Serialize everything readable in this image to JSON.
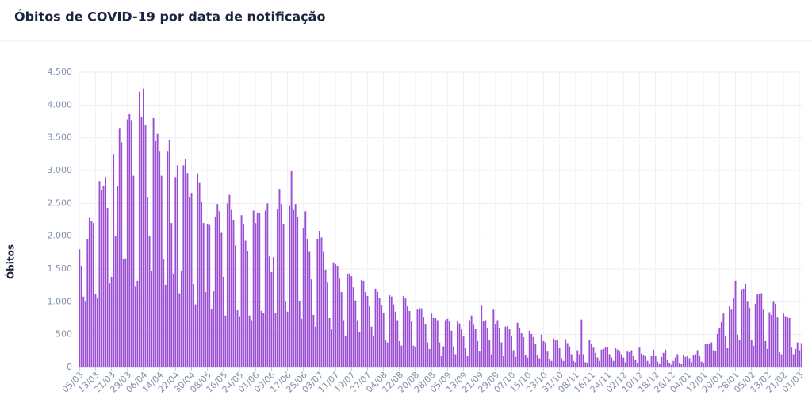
{
  "chart_data": {
    "type": "bar",
    "title": "Óbitos de COVID-19 por data de notificação",
    "y_label": "Óbitos",
    "color": "#9b4fd4",
    "grid": true,
    "ylim": [
      0,
      4500
    ],
    "yticks": [
      0,
      {
        "value": 500,
        "label": "500"
      },
      {
        "value": 1000,
        "label": "1.000"
      },
      {
        "value": 1500,
        "label": "1.500"
      },
      {
        "value": 2000,
        "label": "2.000"
      },
      {
        "value": 2500,
        "label": "2.500"
      },
      {
        "value": 3000,
        "label": "3.000"
      },
      {
        "value": 3500,
        "label": "3.500"
      },
      {
        "value": 4000,
        "label": "4.000"
      },
      {
        "value": 4500,
        "label": "4.500"
      }
    ],
    "categories": [
      "05/03",
      null,
      null,
      null,
      null,
      null,
      null,
      null,
      "13/03",
      null,
      null,
      null,
      null,
      null,
      null,
      null,
      "21/03",
      null,
      null,
      null,
      null,
      null,
      null,
      null,
      "29/03",
      null,
      null,
      null,
      null,
      null,
      null,
      null,
      "06/04",
      null,
      null,
      null,
      null,
      null,
      null,
      null,
      "14/04",
      null,
      null,
      null,
      null,
      null,
      null,
      null,
      "22/04",
      null,
      null,
      null,
      null,
      null,
      null,
      null,
      "30/04",
      null,
      null,
      null,
      null,
      null,
      null,
      null,
      "08/05",
      null,
      null,
      null,
      null,
      null,
      null,
      null,
      "16/05",
      null,
      null,
      null,
      null,
      null,
      null,
      null,
      "24/05",
      null,
      null,
      null,
      null,
      null,
      null,
      null,
      "01/06",
      null,
      null,
      null,
      null,
      null,
      null,
      null,
      "09/06",
      null,
      null,
      null,
      null,
      null,
      null,
      null,
      "17/06",
      null,
      null,
      null,
      null,
      null,
      null,
      null,
      "25/06",
      null,
      null,
      null,
      null,
      null,
      null,
      null,
      "03/07",
      null,
      null,
      null,
      null,
      null,
      null,
      null,
      "11/07",
      null,
      null,
      null,
      null,
      null,
      null,
      null,
      "19/07",
      null,
      null,
      null,
      null,
      null,
      null,
      null,
      "27/07",
      null,
      null,
      null,
      null,
      null,
      null,
      null,
      "04/08",
      null,
      null,
      null,
      null,
      null,
      null,
      null,
      "12/08",
      null,
      null,
      null,
      null,
      null,
      null,
      null,
      "20/08",
      null,
      null,
      null,
      null,
      null,
      null,
      null,
      "28/08",
      null,
      null,
      null,
      null,
      null,
      null,
      null,
      "05/09",
      null,
      null,
      null,
      null,
      null,
      null,
      null,
      "13/09",
      null,
      null,
      null,
      null,
      null,
      null,
      null,
      "21/09",
      null,
      null,
      null,
      null,
      null,
      null,
      null,
      "29/09",
      null,
      null,
      null,
      null,
      null,
      null,
      null,
      "07/10",
      null,
      null,
      null,
      null,
      null,
      null,
      null,
      "15/10",
      null,
      null,
      null,
      null,
      null,
      null,
      null,
      "23/10",
      null,
      null,
      null,
      null,
      null,
      null,
      null,
      "31/10",
      null,
      null,
      null,
      null,
      null,
      null,
      null,
      "08/11",
      null,
      null,
      null,
      null,
      null,
      null,
      null,
      "16/11",
      null,
      null,
      null,
      null,
      null,
      null,
      null,
      "24/11",
      null,
      null,
      null,
      null,
      null,
      null,
      null,
      "02/12",
      null,
      null,
      null,
      null,
      null,
      null,
      null,
      "10/12",
      null,
      null,
      null,
      null,
      null,
      null,
      null,
      "18/12",
      null,
      null,
      null,
      null,
      null,
      null,
      null,
      "26/12",
      null,
      null,
      null,
      null,
      null,
      null,
      null,
      "04/01",
      null,
      null,
      null,
      null,
      null,
      null,
      null,
      "12/01",
      null,
      null,
      null,
      null,
      null,
      null,
      null,
      "20/01",
      null,
      null,
      null,
      null,
      null,
      null,
      null,
      "28/01",
      null,
      null,
      null,
      null,
      null,
      null,
      null,
      "05/02",
      null,
      null,
      null,
      null,
      null,
      null,
      null,
      "13/02",
      null,
      null,
      null,
      null,
      null,
      null,
      null,
      "21/02",
      null,
      null,
      null,
      null,
      null,
      null,
      null,
      "01/03",
      null
    ],
    "values": [
      1800,
      1550,
      1080,
      1000,
      1960,
      2280,
      2230,
      2200,
      1120,
      1060,
      2840,
      2700,
      2770,
      2900,
      2430,
      1280,
      1380,
      3250,
      2000,
      2770,
      3650,
      3430,
      1650,
      1660,
      3780,
      3860,
      3770,
      2920,
      1230,
      1320,
      4200,
      3820,
      4250,
      3700,
      2600,
      2000,
      1470,
      3800,
      3450,
      3560,
      3300,
      2920,
      1650,
      1260,
      3300,
      3470,
      2200,
      1430,
      2900,
      3080,
      1130,
      1470,
      3080,
      3170,
      2960,
      2600,
      2660,
      1270,
      960,
      2960,
      2810,
      2530,
      2200,
      1150,
      2190,
      2180,
      890,
      1160,
      2300,
      2490,
      2380,
      2050,
      1380,
      790,
      2500,
      2630,
      2400,
      2250,
      1860,
      870,
      780,
      2320,
      2190,
      1930,
      1770,
      790,
      720,
      2390,
      2200,
      2360,
      2350,
      860,
      830,
      2390,
      2500,
      1690,
      1450,
      1680,
      830,
      2410,
      2720,
      2490,
      2190,
      1000,
      850,
      2460,
      3000,
      2400,
      2490,
      2290,
      1010,
      740,
      2130,
      2380,
      1960,
      1760,
      1340,
      800,
      620,
      1960,
      2080,
      1980,
      1760,
      1490,
      1290,
      750,
      580,
      1600,
      1570,
      1550,
      1350,
      1150,
      720,
      480,
      1430,
      1430,
      1390,
      1220,
      1020,
      720,
      540,
      1330,
      1320,
      1150,
      1090,
      930,
      620,
      480,
      1200,
      1150,
      1060,
      950,
      830,
      420,
      380,
      1100,
      1080,
      960,
      850,
      720,
      400,
      330,
      1090,
      1050,
      930,
      860,
      700,
      330,
      310,
      880,
      900,
      900,
      760,
      660,
      380,
      280,
      820,
      750,
      750,
      720,
      380,
      170,
      320,
      720,
      740,
      700,
      560,
      320,
      200,
      700,
      670,
      580,
      470,
      290,
      170,
      720,
      790,
      650,
      580,
      400,
      240,
      940,
      700,
      720,
      600,
      420,
      200,
      880,
      660,
      720,
      600,
      380,
      170,
      620,
      630,
      580,
      480,
      260,
      160,
      680,
      600,
      520,
      460,
      190,
      150,
      560,
      510,
      460,
      350,
      190,
      140,
      500,
      400,
      380,
      240,
      130,
      100,
      440,
      410,
      420,
      290,
      140,
      100,
      430,
      370,
      320,
      200,
      100,
      80,
      260,
      200,
      730,
      200,
      80,
      60,
      420,
      360,
      300,
      220,
      150,
      100,
      270,
      280,
      300,
      310,
      200,
      150,
      100,
      290,
      270,
      240,
      200,
      150,
      80,
      240,
      230,
      260,
      170,
      110,
      60,
      300,
      210,
      180,
      170,
      100,
      50,
      170,
      270,
      170,
      90,
      50,
      160,
      220,
      270,
      110,
      60,
      40,
      100,
      150,
      200,
      70,
      50,
      190,
      160,
      170,
      140,
      80,
      180,
      200,
      260,
      170,
      90,
      60,
      360,
      350,
      360,
      380,
      260,
      250,
      510,
      600,
      690,
      820,
      470,
      290,
      930,
      880,
      1050,
      1320,
      500,
      420,
      1190,
      1200,
      1270,
      1000,
      910,
      420,
      330,
      970,
      1110,
      1120,
      1130,
      880,
      400,
      280,
      840,
      800,
      1000,
      970,
      760,
      230,
      200,
      820,
      780,
      760,
      750,
      300,
      200,
      280,
      380,
      260,
      370
    ]
  }
}
